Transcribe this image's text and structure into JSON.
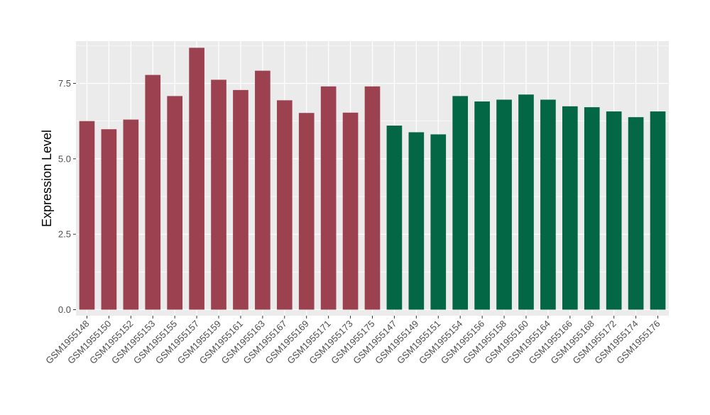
{
  "chart_data": {
    "type": "bar",
    "title": "",
    "xlabel": "",
    "ylabel": "Expression Level",
    "ylim": [
      -0.2,
      8.9
    ],
    "yticks": [
      0.0,
      2.5,
      5.0,
      7.5
    ],
    "ytick_labels": [
      "0.0",
      "2.5",
      "5.0",
      "7.5"
    ],
    "grid": true,
    "legend": "none",
    "colors": {
      "group_a": "#9b4150",
      "group_b": "#036644",
      "panel": "#ebebeb",
      "grid": "#ffffff"
    },
    "categories": [
      "GSM1955148",
      "GSM1955150",
      "GSM1955152",
      "GSM1955153",
      "GSM1955155",
      "GSM1955157",
      "GSM1955159",
      "GSM1955161",
      "GSM1955163",
      "GSM1955167",
      "GSM1955169",
      "GSM1955171",
      "GSM1955173",
      "GSM1955175",
      "GSM1955147",
      "GSM1955149",
      "GSM1955151",
      "GSM1955154",
      "GSM1955156",
      "GSM1955158",
      "GSM1955160",
      "GSM1955164",
      "GSM1955166",
      "GSM1955168",
      "GSM1955172",
      "GSM1955174",
      "GSM1955176"
    ],
    "values": [
      6.25,
      5.98,
      6.3,
      7.78,
      7.08,
      8.68,
      7.62,
      7.28,
      7.92,
      6.94,
      6.52,
      7.4,
      6.53,
      7.4,
      6.1,
      5.88,
      5.81,
      7.08,
      6.9,
      6.96,
      7.13,
      6.96,
      6.74,
      6.71,
      6.57,
      6.38,
      6.57
    ],
    "groups": [
      "a",
      "a",
      "a",
      "a",
      "a",
      "a",
      "a",
      "a",
      "a",
      "a",
      "a",
      "a",
      "a",
      "a",
      "b",
      "b",
      "b",
      "b",
      "b",
      "b",
      "b",
      "b",
      "b",
      "b",
      "b",
      "b",
      "b"
    ]
  }
}
